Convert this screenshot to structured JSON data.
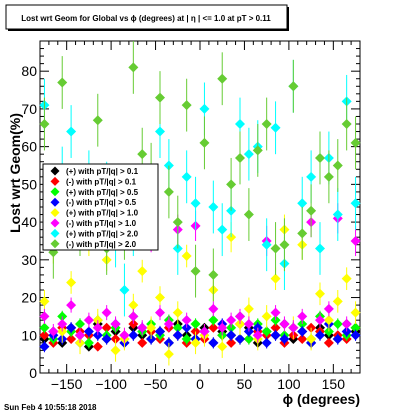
{
  "title": "Lost wrt Geom for Global vs ϕ (degrees) at | η | <= 1.0 at pT > 0.11",
  "timestamp": "Sun Feb  4 10:55:18 2018",
  "colors": {
    "background": "#ffffff",
    "frame": "#000000",
    "series": [
      "#000000",
      "#ff0000",
      "#00ff00",
      "#0000ff",
      "#ffff00",
      "#ff00ff",
      "#00ffff",
      "#66cc33"
    ]
  },
  "chart_data": {
    "type": "scatter",
    "xlabel": "ϕ (degrees)",
    "ylabel": "Lost wrt Geom(%)",
    "xlim": [
      -180,
      180
    ],
    "ylim": [
      0,
      88
    ],
    "xticks": [
      -150,
      -100,
      -50,
      0,
      50,
      100,
      150
    ],
    "xtick_labels": [
      "−150",
      "−100",
      "−50",
      "0",
      "50",
      "100",
      "150"
    ],
    "yticks": [
      0,
      10,
      20,
      30,
      40,
      50,
      60,
      70,
      80
    ],
    "grid": false,
    "legend_position": "left-center",
    "marker": "diamond",
    "series": [
      {
        "name": "(+) with pT/|q| > 0.1",
        "marker": "diamond",
        "color": "#000000",
        "x": [
          -175,
          -165,
          -155,
          -145,
          -135,
          -125,
          -115,
          -105,
          -95,
          -85,
          -75,
          -65,
          -55,
          -45,
          -35,
          -25,
          -15,
          -5,
          5,
          15,
          25,
          35,
          45,
          55,
          65,
          75,
          85,
          95,
          105,
          115,
          125,
          135,
          145,
          155,
          165,
          175
        ],
        "y": [
          9,
          11,
          8,
          12,
          10,
          7,
          13,
          9,
          11,
          8,
          12,
          10,
          9,
          11,
          8,
          13,
          10,
          9,
          12,
          8,
          11,
          10,
          9,
          12,
          8,
          11,
          10,
          13,
          9,
          11,
          8,
          12,
          10,
          9,
          13,
          11
        ],
        "err": [
          1,
          1,
          1,
          1,
          1,
          1,
          1,
          1,
          1,
          1,
          1,
          1,
          1,
          1,
          1,
          1,
          1,
          1,
          1,
          1,
          1,
          1,
          1,
          1,
          1,
          1,
          1,
          1,
          1,
          1,
          1,
          1,
          1,
          1,
          1,
          1
        ]
      },
      {
        "name": "(-) with pT/|q| > 0.1",
        "marker": "diamond",
        "color": "#ff0000",
        "x": [
          -175,
          -165,
          -155,
          -145,
          -135,
          -125,
          -115,
          -105,
          -95,
          -85,
          -75,
          -65,
          -55,
          -45,
          -35,
          -25,
          -15,
          -5,
          5,
          15,
          25,
          35,
          45,
          55,
          65,
          75,
          85,
          95,
          105,
          115,
          125,
          135,
          145,
          155,
          165,
          175
        ],
        "y": [
          10,
          8,
          12,
          9,
          11,
          10,
          7,
          12,
          9,
          10,
          13,
          8,
          11,
          9,
          12,
          10,
          8,
          11,
          9,
          12,
          10,
          8,
          13,
          9,
          11,
          10,
          12,
          8,
          10,
          9,
          12,
          11,
          8,
          10,
          9,
          12
        ],
        "err": [
          1,
          1,
          1,
          1,
          1,
          1,
          1,
          1,
          1,
          1,
          1,
          1,
          1,
          1,
          1,
          1,
          1,
          1,
          1,
          1,
          1,
          1,
          1,
          1,
          1,
          1,
          1,
          1,
          1,
          1,
          1,
          1,
          1,
          1,
          1,
          1
        ]
      },
      {
        "name": "(+) with pT/|q| > 0.5",
        "marker": "diamond",
        "color": "#00ff00",
        "x": [
          -175,
          -165,
          -155,
          -145,
          -135,
          -125,
          -115,
          -105,
          -95,
          -85,
          -75,
          -65,
          -55,
          -45,
          -35,
          -25,
          -15,
          -5,
          5,
          15,
          25,
          35,
          45,
          55,
          65,
          75,
          85,
          95,
          105,
          115,
          125,
          135,
          145,
          155,
          165,
          175
        ],
        "y": [
          12,
          9,
          15,
          11,
          13,
          8,
          14,
          10,
          12,
          9,
          15,
          11,
          13,
          10,
          14,
          12,
          9,
          13,
          11,
          14,
          10,
          12,
          15,
          9,
          13,
          11,
          14,
          10,
          12,
          13,
          9,
          15,
          11,
          13,
          10,
          12
        ],
        "err": [
          1.5,
          1.5,
          1.5,
          1.5,
          1.5,
          1.5,
          1.5,
          1.5,
          1.5,
          1.5,
          1.5,
          1.5,
          1.5,
          1.5,
          1.5,
          1.5,
          1.5,
          1.5,
          1.5,
          1.5,
          1.5,
          1.5,
          1.5,
          1.5,
          1.5,
          1.5,
          1.5,
          1.5,
          1.5,
          1.5,
          1.5,
          1.5,
          1.5,
          1.5,
          1.5,
          1.5
        ]
      },
      {
        "name": "(-) with pT/|q| > 0.5",
        "marker": "diamond",
        "color": "#0000ff",
        "x": [
          -175,
          -165,
          -155,
          -145,
          -135,
          -125,
          -115,
          -105,
          -95,
          -85,
          -75,
          -65,
          -55,
          -45,
          -35,
          -25,
          -15,
          -5,
          5,
          15,
          25,
          35,
          45,
          55,
          65,
          75,
          85,
          95,
          105,
          115,
          125,
          135,
          145,
          155,
          165,
          175
        ],
        "y": [
          7,
          10,
          9,
          12,
          8,
          11,
          10,
          9,
          13,
          8,
          10,
          12,
          9,
          11,
          8,
          10,
          12,
          9,
          11,
          8,
          13,
          10,
          9,
          11,
          12,
          8,
          10,
          9,
          12,
          11,
          8,
          10,
          13,
          9,
          11,
          10
        ],
        "err": [
          1.5,
          1.5,
          1.5,
          1.5,
          1.5,
          1.5,
          1.5,
          1.5,
          1.5,
          1.5,
          1.5,
          1.5,
          1.5,
          1.5,
          1.5,
          1.5,
          1.5,
          1.5,
          1.5,
          1.5,
          1.5,
          1.5,
          1.5,
          1.5,
          1.5,
          1.5,
          1.5,
          1.5,
          1.5,
          1.5,
          1.5,
          1.5,
          1.5,
          1.5,
          1.5,
          1.5
        ]
      },
      {
        "name": "(+) with pT/|q| > 1.0",
        "marker": "diamond",
        "color": "#ffff00",
        "x": [
          -175,
          -165,
          -155,
          -145,
          -135,
          -125,
          -115,
          -105,
          -95,
          -85,
          -75,
          -65,
          -55,
          -45,
          -35,
          -25,
          -15,
          -5,
          5,
          15,
          25,
          35,
          45,
          55,
          65,
          75,
          85,
          95,
          105,
          115,
          125,
          135,
          145,
          155,
          165,
          175
        ],
        "y": [
          19,
          33,
          11,
          24,
          8,
          35,
          14,
          30,
          6,
          9,
          18,
          27,
          12,
          20,
          5,
          16,
          31,
          8,
          10,
          22,
          7,
          36,
          13,
          17,
          9,
          15,
          25,
          38,
          12,
          34,
          9,
          21,
          14,
          19,
          25,
          16
        ],
        "err": [
          3,
          4,
          3,
          3,
          3,
          4,
          3,
          3,
          3,
          3,
          3,
          3,
          3,
          3,
          3,
          3,
          3,
          3,
          3,
          3,
          3,
          4,
          3,
          3,
          3,
          3,
          3,
          4,
          3,
          4,
          3,
          3,
          3,
          3,
          3,
          3
        ]
      },
      {
        "name": "(-) with pT/|q| > 1.0",
        "marker": "diamond",
        "color": "#ff00ff",
        "x": [
          -175,
          -165,
          -155,
          -145,
          -135,
          -125,
          -115,
          -105,
          -95,
          -85,
          -75,
          -65,
          -55,
          -45,
          -35,
          -25,
          -15,
          -5,
          5,
          15,
          25,
          35,
          45,
          55,
          65,
          75,
          85,
          95,
          105,
          115,
          125,
          135,
          145,
          155,
          165,
          175
        ],
        "y": [
          15,
          11,
          13,
          18,
          10,
          14,
          12,
          16,
          13,
          10,
          15,
          12,
          36,
          16,
          13,
          38,
          14,
          39,
          11,
          17,
          12,
          14,
          15,
          13,
          10,
          35,
          16,
          13,
          12,
          15,
          40,
          14,
          17,
          41,
          13,
          35
        ],
        "err": [
          2,
          2,
          2,
          2,
          2,
          2,
          2,
          2,
          2,
          2,
          2,
          2,
          4,
          2,
          2,
          4,
          2,
          4,
          2,
          2,
          2,
          2,
          2,
          2,
          2,
          4,
          2,
          2,
          2,
          2,
          4,
          2,
          2,
          4,
          2,
          4
        ]
      },
      {
        "name": "(+) with pT/|q| > 2.0",
        "marker": "diamond",
        "color": "#00ffff",
        "x": [
          -175,
          -165,
          -155,
          -145,
          -135,
          -125,
          -115,
          -105,
          -95,
          -85,
          -75,
          -65,
          -55,
          -45,
          -35,
          -25,
          -15,
          -5,
          5,
          15,
          25,
          35,
          45,
          55,
          65,
          75,
          85,
          95,
          105,
          115,
          125,
          135,
          145,
          155,
          165,
          175
        ],
        "y": [
          71,
          48,
          53,
          64,
          45,
          52,
          44,
          49,
          35,
          22,
          38,
          42,
          46,
          64,
          55,
          33,
          52,
          45,
          70,
          44,
          38,
          43,
          66,
          58,
          60,
          34,
          65,
          29,
          76,
          45,
          52,
          33,
          57,
          42,
          72,
          45
        ],
        "err": [
          7,
          7,
          7,
          7,
          7,
          7,
          7,
          7,
          7,
          7,
          7,
          7,
          7,
          7,
          7,
          7,
          7,
          7,
          7,
          7,
          7,
          7,
          7,
          7,
          7,
          7,
          7,
          7,
          7,
          7,
          7,
          7,
          7,
          7,
          7,
          7
        ]
      },
      {
        "name": "(-) with pT/|q| > 2.0",
        "marker": "diamond",
        "color": "#66cc33",
        "x": [
          -175,
          -165,
          -155,
          -145,
          -135,
          -125,
          -115,
          -105,
          -95,
          -85,
          -75,
          -65,
          -55,
          -45,
          -35,
          -25,
          -15,
          -5,
          5,
          15,
          25,
          35,
          45,
          55,
          65,
          75,
          85,
          95,
          105,
          115,
          125,
          135,
          145,
          155,
          165,
          175
        ],
        "y": [
          66,
          32,
          77,
          41,
          38,
          45,
          67,
          33,
          40,
          37,
          81,
          58,
          54,
          73,
          48,
          40,
          71,
          27,
          61,
          26,
          78,
          50,
          57,
          42,
          59,
          66,
          33,
          34,
          76,
          37,
          43,
          57,
          52,
          55,
          66,
          61
        ],
        "err": [
          7,
          7,
          7,
          7,
          7,
          7,
          7,
          7,
          7,
          7,
          7,
          7,
          7,
          7,
          7,
          7,
          7,
          7,
          7,
          7,
          7,
          7,
          7,
          7,
          7,
          7,
          7,
          7,
          7,
          7,
          7,
          7,
          7,
          7,
          7,
          7
        ]
      }
    ]
  }
}
